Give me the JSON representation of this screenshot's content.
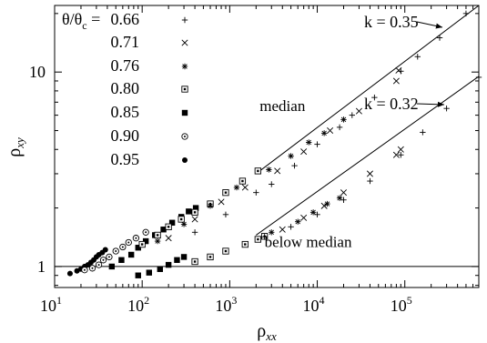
{
  "chart_data": {
    "type": "scatter",
    "x_scale": "log",
    "y_scale": "log",
    "xlim": [
      10,
      700000
    ],
    "ylim": [
      0.78,
      22
    ],
    "xlabel_main": "ρ",
    "xlabel_sub": "xx",
    "ylabel_main": "ρ",
    "ylabel_sub": "xy",
    "x_ticks": [
      {
        "value": 10,
        "base": "10",
        "exp": "1"
      },
      {
        "value": 100,
        "base": "10",
        "exp": "2"
      },
      {
        "value": 1000,
        "base": "10",
        "exp": "3"
      },
      {
        "value": 10000,
        "base": "10",
        "exp": "4"
      },
      {
        "value": 100000,
        "base": "10",
        "exp": "5"
      }
    ],
    "y_ticks": [
      {
        "value": 1,
        "label": "1"
      },
      {
        "value": 10,
        "label": "10"
      }
    ],
    "legend": {
      "title_lhs": "θ/θ",
      "title_sub": "c",
      "title_eq": " = ",
      "entries": [
        {
          "label": "0.66",
          "marker": "plus"
        },
        {
          "label": "0.71",
          "marker": "cross"
        },
        {
          "label": "0.76",
          "marker": "asterisk"
        },
        {
          "label": "0.80",
          "marker": "boxed-square"
        },
        {
          "label": "0.85",
          "marker": "filled-square"
        },
        {
          "label": "0.90",
          "marker": "dotted-circle"
        },
        {
          "label": "0.95",
          "marker": "filled-circle"
        }
      ]
    },
    "reference_line": {
      "y": 1
    },
    "fit_lines": [
      {
        "k": "k = 0.35",
        "x": [
          2000,
          700000
        ],
        "y": [
          3.0,
          22
        ]
      },
      {
        "k": "k = 0.32",
        "x": [
          2000,
          700000
        ],
        "y": [
          1.45,
          9.5
        ]
      }
    ],
    "annotations": [
      {
        "text": "median",
        "x": 2200,
        "y": 6.3
      },
      {
        "text": "below median",
        "x": 2500,
        "y": 1.26
      }
    ],
    "series": [
      {
        "name": "0.95",
        "marker": "filled-circle",
        "group": "median",
        "points": [
          [
            15,
            0.92
          ],
          [
            18,
            0.95
          ],
          [
            20,
            0.97
          ],
          [
            22,
            1.0
          ],
          [
            24,
            1.02
          ],
          [
            26,
            1.05
          ],
          [
            28,
            1.08
          ],
          [
            30,
            1.12
          ],
          [
            32,
            1.15
          ],
          [
            35,
            1.18
          ],
          [
            38,
            1.22
          ]
        ]
      },
      {
        "name": "0.90",
        "marker": "dotted-circle",
        "group": "median",
        "points": [
          [
            22,
            0.96
          ],
          [
            27,
            0.98
          ],
          [
            32,
            1.02
          ],
          [
            36,
            1.08
          ],
          [
            42,
            1.12
          ],
          [
            50,
            1.2
          ],
          [
            60,
            1.26
          ],
          [
            70,
            1.33
          ],
          [
            85,
            1.4
          ],
          [
            110,
            1.5
          ]
        ]
      },
      {
        "name": "0.85",
        "marker": "filled-square",
        "group": "median",
        "points": [
          [
            45,
            1.0
          ],
          [
            58,
            1.08
          ],
          [
            75,
            1.15
          ],
          [
            90,
            1.25
          ],
          [
            110,
            1.35
          ],
          [
            140,
            1.45
          ],
          [
            175,
            1.55
          ],
          [
            220,
            1.68
          ],
          [
            280,
            1.8
          ],
          [
            340,
            1.92
          ],
          [
            410,
            2.0
          ]
        ]
      },
      {
        "name": "0.85",
        "marker": "filled-square",
        "group": "below",
        "points": [
          [
            90,
            0.9
          ],
          [
            120,
            0.93
          ],
          [
            160,
            0.97
          ],
          [
            200,
            1.02
          ],
          [
            250,
            1.08
          ],
          [
            300,
            1.12
          ]
        ]
      },
      {
        "name": "0.80",
        "marker": "boxed-square",
        "group": "median",
        "points": [
          [
            100,
            1.3
          ],
          [
            150,
            1.45
          ],
          [
            200,
            1.6
          ],
          [
            280,
            1.75
          ],
          [
            400,
            1.9
          ],
          [
            600,
            2.1
          ],
          [
            900,
            2.4
          ],
          [
            1400,
            2.75
          ],
          [
            2100,
            3.1
          ]
        ]
      },
      {
        "name": "0.80",
        "marker": "boxed-square",
        "group": "below",
        "points": [
          [
            400,
            1.06
          ],
          [
            600,
            1.12
          ],
          [
            900,
            1.2
          ],
          [
            1500,
            1.3
          ],
          [
            2100,
            1.38
          ],
          [
            2500,
            1.43
          ]
        ]
      },
      {
        "name": "0.76",
        "marker": "asterisk",
        "group": "median",
        "points": [
          [
            150,
            1.35
          ],
          [
            300,
            1.65
          ],
          [
            600,
            2.05
          ],
          [
            1200,
            2.55
          ],
          [
            2800,
            3.15
          ],
          [
            5000,
            3.7
          ],
          [
            8000,
            4.35
          ],
          [
            12000,
            4.85
          ],
          [
            20000,
            5.7
          ]
        ]
      },
      {
        "name": "0.76",
        "marker": "asterisk",
        "group": "below",
        "points": [
          [
            3000,
            1.5
          ],
          [
            6000,
            1.7
          ],
          [
            9000,
            1.9
          ],
          [
            13000,
            2.1
          ],
          [
            18000,
            2.25
          ]
        ]
      },
      {
        "name": "0.71",
        "marker": "cross",
        "group": "median",
        "points": [
          [
            200,
            1.4
          ],
          [
            400,
            1.75
          ],
          [
            800,
            2.15
          ],
          [
            1500,
            2.55
          ],
          [
            3500,
            3.1
          ],
          [
            7000,
            3.9
          ],
          [
            14000,
            5.0
          ],
          [
            30000,
            6.3
          ],
          [
            80000,
            9.0
          ],
          [
            85000,
            10.2
          ]
        ]
      },
      {
        "name": "0.71",
        "marker": "cross",
        "group": "below",
        "points": [
          [
            4000,
            1.55
          ],
          [
            7000,
            1.78
          ],
          [
            12000,
            2.05
          ],
          [
            20000,
            2.4
          ],
          [
            40000,
            3.0
          ],
          [
            80000,
            3.75
          ],
          [
            90000,
            4.0
          ]
        ]
      },
      {
        "name": "0.66",
        "marker": "plus",
        "group": "median",
        "points": [
          [
            400,
            1.5
          ],
          [
            900,
            1.85
          ],
          [
            2000,
            2.4
          ],
          [
            3000,
            2.65
          ],
          [
            5500,
            3.3
          ],
          [
            10000,
            4.25
          ],
          [
            18000,
            5.2
          ],
          [
            25000,
            6.0
          ],
          [
            45000,
            7.4
          ],
          [
            90000,
            10.1
          ],
          [
            140000,
            12.0
          ],
          [
            250000,
            15.0
          ],
          [
            500000,
            20.0
          ]
        ]
      },
      {
        "name": "0.66",
        "marker": "plus",
        "group": "below",
        "points": [
          [
            2500,
            1.42
          ],
          [
            5000,
            1.6
          ],
          [
            10000,
            1.85
          ],
          [
            20000,
            2.2
          ],
          [
            40000,
            2.75
          ],
          [
            90000,
            3.75
          ],
          [
            160000,
            4.9
          ],
          [
            300000,
            6.5
          ],
          [
            700000,
            9.4
          ]
        ]
      }
    ]
  }
}
